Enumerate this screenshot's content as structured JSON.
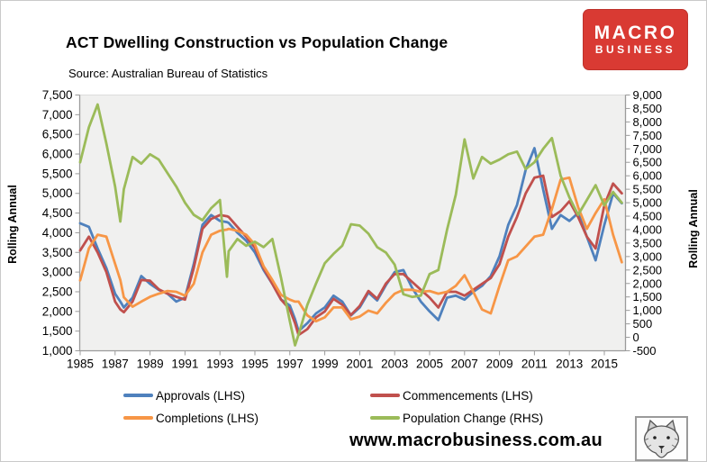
{
  "logo": {
    "line1": "MACRO",
    "line2": "BUSINESS",
    "background": "#d93a33"
  },
  "footer": {
    "website": "www.macrobusiness.com.au",
    "wolf_logo": "wolf-head-sketch"
  },
  "chart_data": {
    "type": "line",
    "title": "ACT Dwelling Construction vs Population Change",
    "source": "Source: Australian Bureau of Statistics",
    "grid": false,
    "plot_background": "#f0f0ef",
    "legend_position": "bottom",
    "y_left": {
      "label": "Rolling Annual",
      "min": 1000,
      "max": 7500,
      "tick_step": 500,
      "ticks": [
        "7,500",
        "7,000",
        "6,500",
        "6,000",
        "5,500",
        "5,000",
        "4,500",
        "4,000",
        "3,500",
        "3,000",
        "2,500",
        "2,000",
        "1,500",
        "1,000"
      ]
    },
    "y_right": {
      "label": "Rolling Annual",
      "min": -500,
      "max": 9000,
      "tick_step": 500,
      "ticks": [
        "9,000",
        "8,500",
        "8,000",
        "7,500",
        "7,000",
        "6,500",
        "6,000",
        "5,500",
        "5,000",
        "4,500",
        "4,000",
        "3,500",
        "3,000",
        "2,500",
        "2,000",
        "1,500",
        "1,000",
        "500",
        "0",
        "-500"
      ]
    },
    "x": {
      "min": 1985,
      "max": 2016.2,
      "tick_labels": [
        "1985",
        "1987",
        "1989",
        "1991",
        "1993",
        "1995",
        "1997",
        "1999",
        "2001",
        "2003",
        "2005",
        "2007",
        "2009",
        "2011",
        "2013",
        "2015"
      ]
    },
    "x_values": [
      1985,
      1985.5,
      1986,
      1986.5,
      1987,
      1987.3,
      1987.5,
      1988,
      1988.5,
      1989,
      1989.5,
      1990,
      1990.5,
      1991,
      1991.5,
      1992,
      1992.5,
      1993,
      1993.4,
      1993.5,
      1994,
      1994.5,
      1995,
      1995.5,
      1996,
      1996.5,
      1997,
      1997.3,
      1997.5,
      1998,
      1998.5,
      1999,
      1999.5,
      2000,
      2000.5,
      2001,
      2001.5,
      2002,
      2002.5,
      2003,
      2003.5,
      2004,
      2004.5,
      2005,
      2005.5,
      2006,
      2006.5,
      2007,
      2007.5,
      2008,
      2008.5,
      2009,
      2009.5,
      2010,
      2010.5,
      2011,
      2011.5,
      2012,
      2012.5,
      2013,
      2013.5,
      2014,
      2014.5,
      2015,
      2015.5,
      2016
    ],
    "series": [
      {
        "name": "Approvals (LHS)",
        "axis": "left",
        "color": "#4F81BD",
        "values": [
          4240,
          4150,
          3600,
          3100,
          2450,
          2250,
          2100,
          2350,
          2900,
          2700,
          2550,
          2450,
          2250,
          2350,
          3200,
          4200,
          4450,
          4300,
          4270,
          4250,
          4000,
          3800,
          3500,
          3050,
          2700,
          2300,
          2150,
          1800,
          1500,
          1700,
          1950,
          2100,
          2400,
          2250,
          1900,
          2100,
          2480,
          2280,
          2670,
          3000,
          3050,
          2600,
          2250,
          2000,
          1780,
          2350,
          2400,
          2300,
          2500,
          2650,
          2900,
          3400,
          4200,
          4700,
          5600,
          6150,
          5100,
          4100,
          4450,
          4300,
          4500,
          3900,
          3300,
          4200,
          5000,
          4750
        ]
      },
      {
        "name": "Commencements (LHS)",
        "axis": "left",
        "color": "#C0504D",
        "values": [
          3550,
          3900,
          3500,
          3000,
          2250,
          2050,
          1980,
          2250,
          2800,
          2780,
          2560,
          2450,
          2370,
          2300,
          3100,
          4100,
          4350,
          4450,
          4420,
          4400,
          4150,
          3900,
          3620,
          3100,
          2700,
          2300,
          2050,
          1700,
          1400,
          1550,
          1850,
          2000,
          2320,
          2170,
          1910,
          2140,
          2520,
          2320,
          2710,
          2950,
          2950,
          2750,
          2550,
          2350,
          2100,
          2500,
          2500,
          2400,
          2550,
          2700,
          2850,
          3200,
          3900,
          4400,
          5000,
          5400,
          5450,
          4400,
          4550,
          4800,
          4400,
          3900,
          3600,
          4700,
          5250,
          5000
        ]
      },
      {
        "name": "Completions (LHS)",
        "axis": "left",
        "color": "#F79646",
        "values": [
          2790,
          3600,
          3950,
          3900,
          3210,
          2800,
          2360,
          2120,
          2250,
          2370,
          2450,
          2520,
          2500,
          2400,
          2700,
          3500,
          3950,
          4050,
          4080,
          4100,
          4050,
          3950,
          3700,
          3150,
          2800,
          2420,
          2300,
          2250,
          2250,
          1900,
          1750,
          1850,
          2100,
          2100,
          1800,
          1870,
          2020,
          1950,
          2220,
          2450,
          2550,
          2550,
          2500,
          2520,
          2450,
          2500,
          2650,
          2920,
          2500,
          2050,
          1950,
          2650,
          3300,
          3400,
          3650,
          3900,
          3950,
          4600,
          5350,
          5400,
          4650,
          4100,
          4500,
          4850,
          3950,
          3250
        ]
      },
      {
        "name": "Population Change (RHS)",
        "axis": "right",
        "color": "#9BBB59",
        "values": [
          6500,
          7800,
          8650,
          7200,
          5600,
          4300,
          5500,
          6700,
          6450,
          6800,
          6600,
          6100,
          5600,
          5000,
          4550,
          4350,
          4800,
          5100,
          2250,
          3200,
          3650,
          3400,
          3550,
          3350,
          3650,
          2200,
          600,
          -300,
          100,
          1200,
          2000,
          2750,
          3100,
          3400,
          4200,
          4150,
          3850,
          3350,
          3150,
          2700,
          1600,
          1500,
          1550,
          2350,
          2500,
          4000,
          5300,
          7350,
          5900,
          6700,
          6450,
          6600,
          6800,
          6900,
          6250,
          6500,
          7000,
          7400,
          6000,
          5200,
          4550,
          5100,
          5650,
          4900,
          5400,
          5000
        ]
      }
    ]
  }
}
